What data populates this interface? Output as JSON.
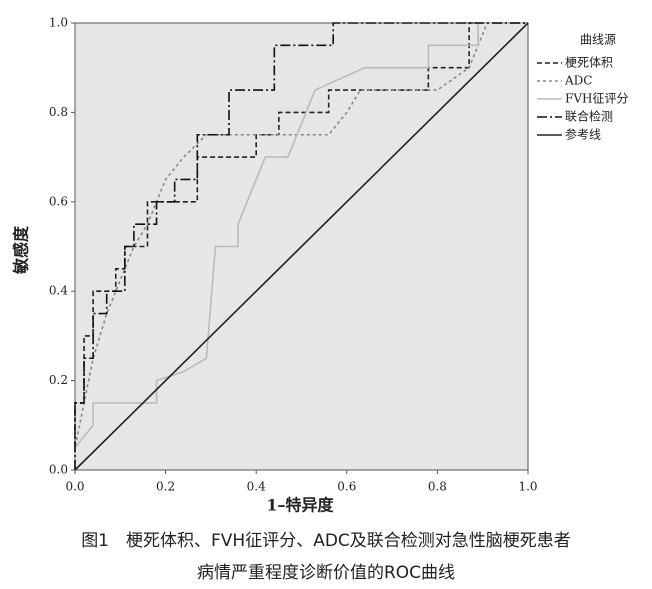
{
  "chart_data": {
    "type": "line",
    "xlabel": "1–特异度",
    "ylabel": "敏感度",
    "legend_title": "曲线源",
    "caption": [
      "图1　梗死体积、FVH征评分、ADC及联合检测对急性脑梗死患者",
      "病情严重程度诊断价值的ROC曲线"
    ],
    "xlim": [
      0,
      1
    ],
    "ylim": [
      0,
      1
    ],
    "xticks": [
      {
        "value": 0,
        "label": "0.0"
      },
      0.2,
      0.4,
      0.6,
      0.8,
      {
        "value": 1,
        "label": "1.0"
      }
    ],
    "yticks": [
      {
        "value": 0,
        "label": "0.0"
      },
      0.2,
      0.4,
      0.6,
      0.8,
      {
        "value": 1,
        "label": "1.0"
      }
    ],
    "legend": "right",
    "series": [
      {
        "name": "梗死体积",
        "color": "#222222",
        "dash": "5,3",
        "x": [
          0,
          0,
          0.02,
          0.02,
          0.04,
          0.04,
          0.09,
          0.09,
          0.11,
          0.11,
          0.16,
          0.16,
          0.27,
          0.27,
          0.4,
          0.4,
          0.45,
          0.45,
          0.56,
          0.56,
          0.78,
          0.78,
          0.87,
          0.87,
          1
        ],
        "values": [
          0,
          0.15,
          0.15,
          0.3,
          0.3,
          0.4,
          0.4,
          0.45,
          0.45,
          0.5,
          0.5,
          0.6,
          0.6,
          0.7,
          0.7,
          0.75,
          0.75,
          0.8,
          0.8,
          0.85,
          0.85,
          0.9,
          0.9,
          1,
          1
        ]
      },
      {
        "name": "ADC",
        "color": "#888888",
        "dash": "3,3",
        "x": [
          0,
          0,
          0.02,
          0.04,
          0.07,
          0.09,
          0.13,
          0.16,
          0.2,
          0.24,
          0.29,
          0.47,
          0.56,
          0.6,
          0.63,
          0.8,
          0.87,
          0.91,
          1
        ],
        "values": [
          0,
          0.05,
          0.15,
          0.25,
          0.35,
          0.4,
          0.5,
          0.55,
          0.65,
          0.7,
          0.75,
          0.75,
          0.75,
          0.8,
          0.85,
          0.85,
          0.9,
          1,
          1
        ]
      },
      {
        "name": "FVH征评分",
        "color": "#bbbbbb",
        "dash": "",
        "x": [
          0,
          0,
          0.04,
          0.04,
          0.18,
          0.18,
          0.24,
          0.29,
          0.31,
          0.36,
          0.36,
          0.42,
          0.47,
          0.53,
          0.64,
          0.78,
          0.78,
          0.89,
          0.89,
          1
        ],
        "values": [
          0,
          0.05,
          0.1,
          0.15,
          0.15,
          0.2,
          0.22,
          0.25,
          0.5,
          0.5,
          0.55,
          0.7,
          0.7,
          0.85,
          0.9,
          0.9,
          0.95,
          0.95,
          1,
          1
        ]
      },
      {
        "name": "联合检测",
        "color": "#111111",
        "dash": "10,3,2,3",
        "x": [
          0,
          0,
          0.02,
          0.02,
          0.04,
          0.04,
          0.07,
          0.07,
          0.11,
          0.11,
          0.13,
          0.13,
          0.18,
          0.18,
          0.22,
          0.22,
          0.27,
          0.27,
          0.34,
          0.34,
          0.44,
          0.44,
          0.57,
          0.57,
          1
        ],
        "values": [
          0,
          0.15,
          0.15,
          0.25,
          0.25,
          0.35,
          0.35,
          0.4,
          0.4,
          0.5,
          0.5,
          0.55,
          0.55,
          0.6,
          0.6,
          0.65,
          0.65,
          0.75,
          0.75,
          0.85,
          0.85,
          0.95,
          0.95,
          1,
          1
        ]
      },
      {
        "name": "参考线",
        "color": "#222222",
        "dash": "",
        "x": [
          0,
          1
        ],
        "values": [
          0,
          1
        ]
      }
    ]
  }
}
